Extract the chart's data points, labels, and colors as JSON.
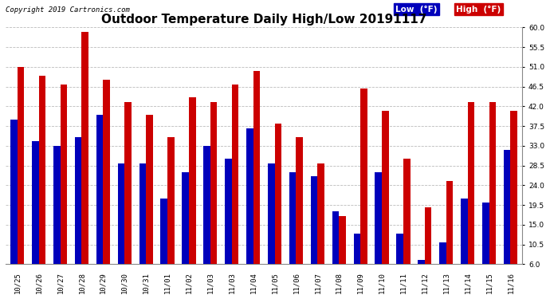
{
  "title": "Outdoor Temperature Daily High/Low 20191117",
  "copyright": "Copyright 2019 Cartronics.com",
  "categories": [
    "10/25",
    "10/26",
    "10/27",
    "10/28",
    "10/29",
    "10/30",
    "10/31",
    "11/01",
    "11/02",
    "11/03",
    "11/03",
    "11/04",
    "11/05",
    "11/06",
    "11/07",
    "11/08",
    "11/09",
    "11/10",
    "11/11",
    "11/12",
    "11/13",
    "11/14",
    "11/15",
    "11/16"
  ],
  "low_values": [
    39,
    34,
    33,
    35,
    40,
    29,
    29,
    21,
    27,
    33,
    30,
    37,
    29,
    27,
    26,
    18,
    13,
    27,
    13,
    7,
    11,
    21,
    20,
    32
  ],
  "high_values": [
    51,
    49,
    47,
    59,
    48,
    43,
    40,
    35,
    44,
    43,
    47,
    50,
    38,
    35,
    29,
    17,
    46,
    41,
    30,
    19,
    25,
    43,
    43,
    41
  ],
  "low_color": "#0000bb",
  "high_color": "#cc0000",
  "bg_color": "#ffffff",
  "plot_bg_color": "#ffffff",
  "grid_color": "#bbbbbb",
  "ylim_min": 6.0,
  "ylim_max": 60.0,
  "yticks": [
    6.0,
    10.5,
    15.0,
    19.5,
    24.0,
    28.5,
    33.0,
    37.5,
    42.0,
    46.5,
    51.0,
    55.5,
    60.0
  ],
  "title_fontsize": 11,
  "tick_fontsize": 6.5,
  "copyright_fontsize": 6.5,
  "legend_low_label": "Low  (°F)",
  "legend_high_label": "High  (°F)"
}
